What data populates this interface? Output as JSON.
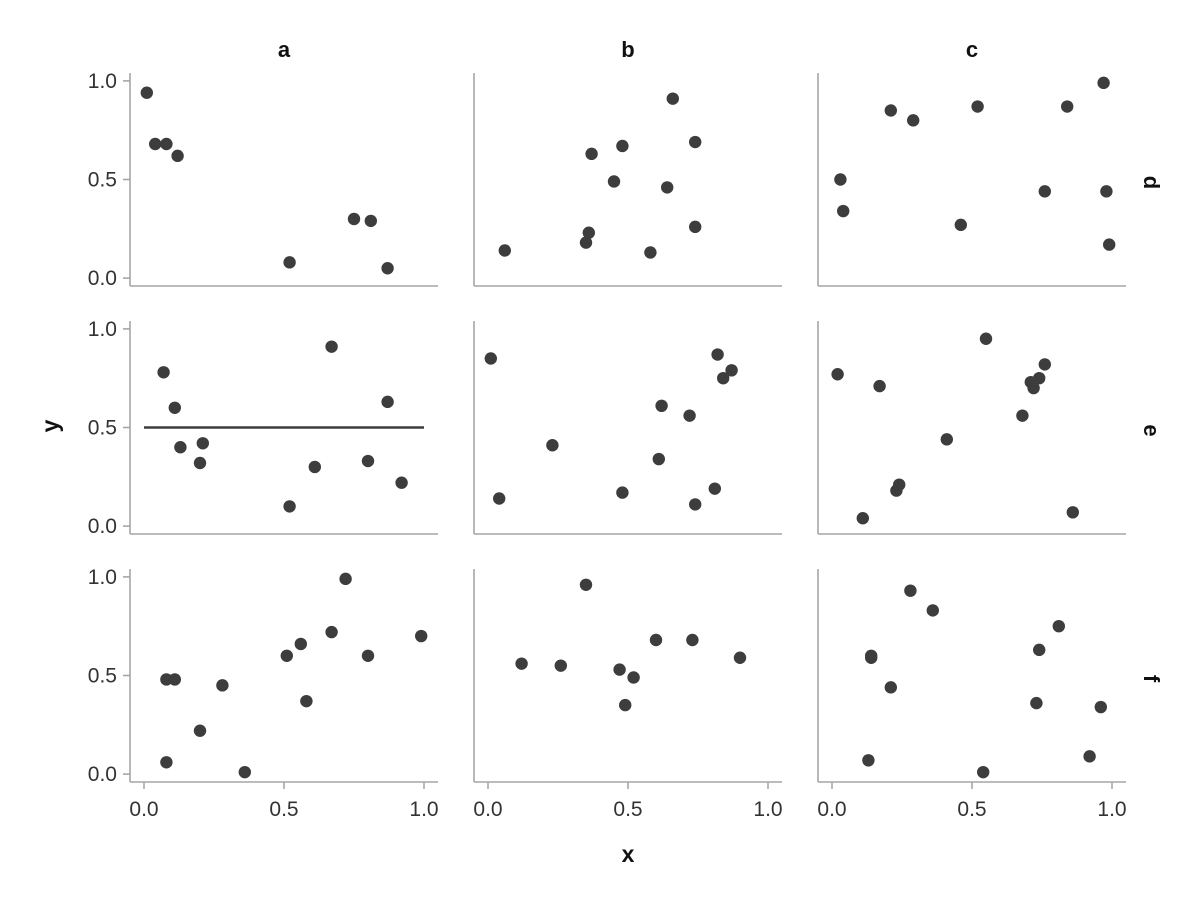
{
  "chart_data": {
    "type": "scatter",
    "title": "",
    "xlabel": "x",
    "ylabel": "y",
    "xlim": [
      -0.05,
      1.05
    ],
    "ylim": [
      -0.04,
      1.04
    ],
    "x_ticks": [
      0,
      0.5,
      1
    ],
    "x_tick_labels": [
      "0.0",
      "0.5",
      "1.0"
    ],
    "y_ticks": [
      0,
      0.5,
      1
    ],
    "y_tick_labels": [
      "0.0",
      "0.5",
      "1.0"
    ],
    "grid": false,
    "col_labels": [
      "a",
      "b",
      "c"
    ],
    "row_labels": [
      "d",
      "e",
      "f"
    ],
    "point_color": "#3d3d3d",
    "axis_color": "#a6a6a6",
    "panels": [
      {
        "col": "a",
        "row": "d",
        "x": [
          0.01,
          0.04,
          0.08,
          0.12,
          0.52,
          0.75,
          0.81,
          0.87
        ],
        "y": [
          0.94,
          0.68,
          0.68,
          0.62,
          0.08,
          0.3,
          0.29,
          0.05
        ]
      },
      {
        "col": "b",
        "row": "d",
        "x": [
          0.06,
          0.35,
          0.36,
          0.37,
          0.45,
          0.48,
          0.58,
          0.64,
          0.66,
          0.74,
          0.74
        ],
        "y": [
          0.14,
          0.18,
          0.23,
          0.63,
          0.49,
          0.67,
          0.13,
          0.46,
          0.91,
          0.69,
          0.26
        ]
      },
      {
        "col": "c",
        "row": "d",
        "x": [
          0.03,
          0.04,
          0.21,
          0.29,
          0.46,
          0.52,
          0.76,
          0.84,
          0.97,
          0.98,
          0.99
        ],
        "y": [
          0.5,
          0.34,
          0.85,
          0.8,
          0.27,
          0.87,
          0.44,
          0.87,
          0.99,
          0.44,
          0.17
        ]
      },
      {
        "col": "a",
        "row": "e",
        "x": [
          0.07,
          0.11,
          0.13,
          0.2,
          0.21,
          0.52,
          0.61,
          0.67,
          0.8,
          0.87,
          0.92
        ],
        "y": [
          0.78,
          0.6,
          0.4,
          0.32,
          0.42,
          0.1,
          0.3,
          0.91,
          0.33,
          0.63,
          0.22
        ]
      },
      {
        "col": "b",
        "row": "e",
        "x": [
          0.01,
          0.04,
          0.23,
          0.48,
          0.61,
          0.62,
          0.72,
          0.74,
          0.81,
          0.82,
          0.84,
          0.87
        ],
        "y": [
          0.85,
          0.14,
          0.41,
          0.17,
          0.34,
          0.61,
          0.56,
          0.11,
          0.19,
          0.87,
          0.75,
          0.79
        ]
      },
      {
        "col": "c",
        "row": "e",
        "x": [
          0.02,
          0.11,
          0.17,
          0.23,
          0.24,
          0.41,
          0.55,
          0.68,
          0.71,
          0.72,
          0.74,
          0.76,
          0.86
        ],
        "y": [
          0.77,
          0.04,
          0.71,
          0.18,
          0.21,
          0.44,
          0.95,
          0.56,
          0.73,
          0.7,
          0.75,
          0.82,
          0.07
        ]
      },
      {
        "col": "a",
        "row": "f",
        "x": [
          0.08,
          0.08,
          0.11,
          0.2,
          0.28,
          0.36,
          0.51,
          0.56,
          0.58,
          0.67,
          0.72,
          0.8,
          0.99
        ],
        "y": [
          0.48,
          0.06,
          0.48,
          0.22,
          0.45,
          0.01,
          0.6,
          0.66,
          0.37,
          0.72,
          0.99,
          0.6,
          0.7
        ]
      },
      {
        "col": "b",
        "row": "f",
        "x": [
          0.12,
          0.26,
          0.35,
          0.47,
          0.49,
          0.52,
          0.6,
          0.73,
          0.9
        ],
        "y": [
          0.56,
          0.55,
          0.96,
          0.53,
          0.35,
          0.49,
          0.68,
          0.68,
          0.59
        ]
      },
      {
        "col": "c",
        "row": "f",
        "x": [
          0.13,
          0.14,
          0.14,
          0.21,
          0.28,
          0.36,
          0.54,
          0.73,
          0.74,
          0.81,
          0.92,
          0.96
        ],
        "y": [
          0.07,
          0.59,
          0.6,
          0.44,
          0.93,
          0.83,
          0.01,
          0.36,
          0.63,
          0.75,
          0.09,
          0.34
        ]
      }
    ],
    "reference_line": {
      "col": "a",
      "row": "e",
      "y": 0.5,
      "x_from": 0.0,
      "x_to": 1.0,
      "color": "#3d3d3d"
    }
  }
}
